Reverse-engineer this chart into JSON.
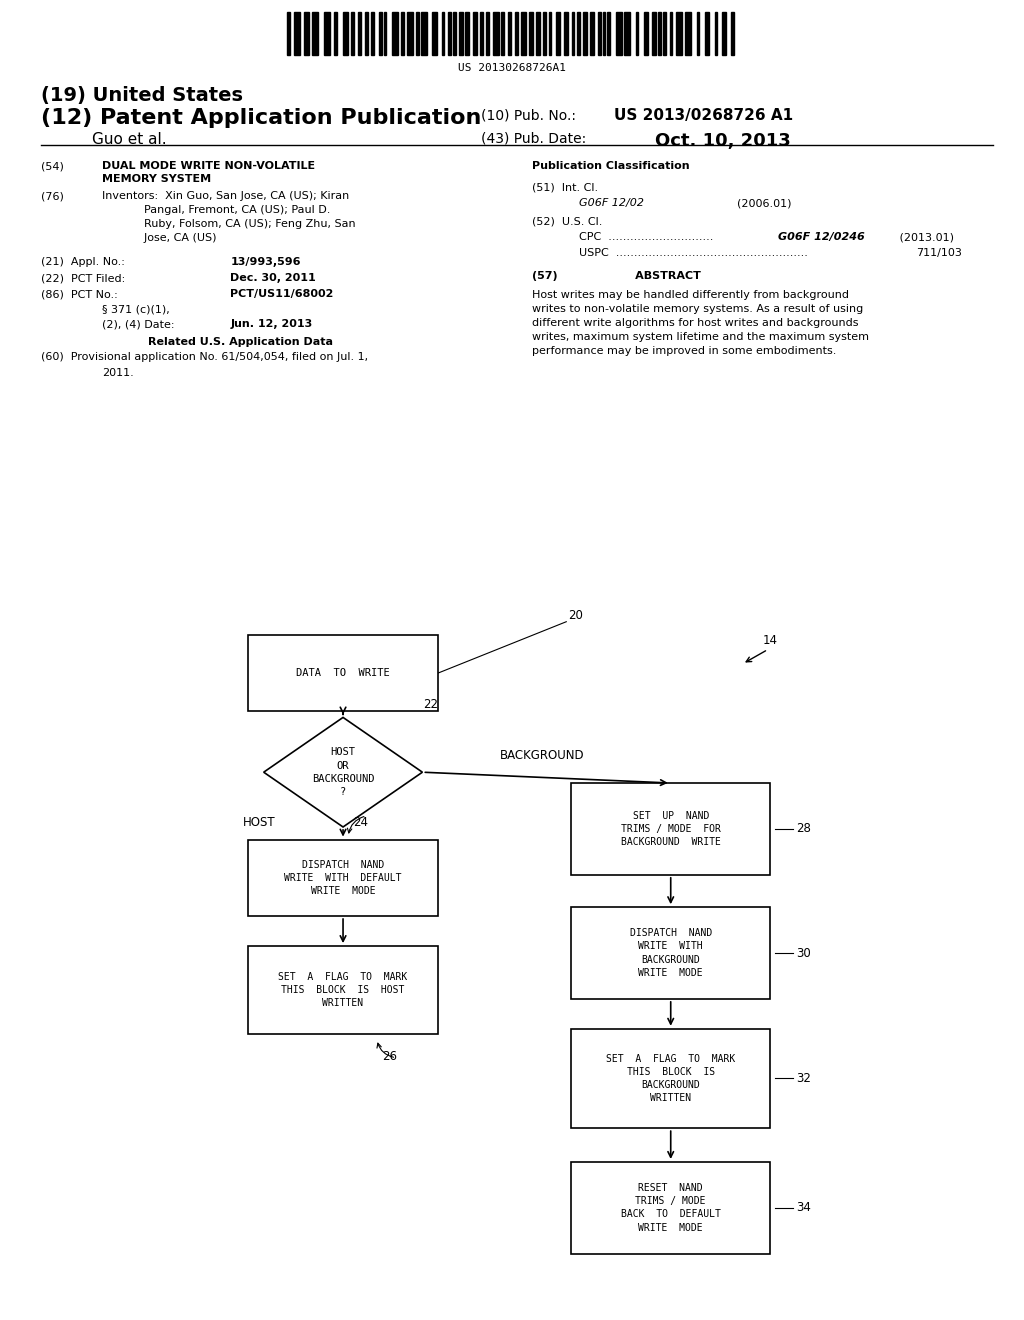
{
  "bg_color": "#ffffff",
  "barcode_text": "US 20130268726A1",
  "title_line1": "(19) United States",
  "title_line2": "(12) Patent Application Publication",
  "pub_no_label": "(10) Pub. No.:",
  "pub_no_value": "US 2013/0268726 A1",
  "author": "Guo et al.",
  "pub_date_label": "(43) Pub. Date:",
  "pub_date_value": "Oct. 10, 2013",
  "abstract_text": "Host writes may be handled differently from background\nwrites to non-volatile memory systems. As a result of using\ndifferent write algorithms for host writes and backgrounds\nwrites, maximum system lifetime and the maximum system\nperformance may be improved in some embodiments."
}
